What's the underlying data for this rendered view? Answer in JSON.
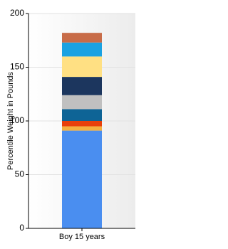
{
  "chart_data": {
    "type": "stacked_bar",
    "y_label": "Percentile Weight in Pounds",
    "categories": [
      "Boy 15 years"
    ],
    "series": [
      {
        "color": "#4a8ef0",
        "values": [
          91
        ]
      },
      {
        "color": "#f4b040",
        "values": [
          4
        ]
      },
      {
        "color": "#e8400c",
        "values": [
          5
        ]
      },
      {
        "color": "#0e6496",
        "values": [
          11
        ]
      },
      {
        "color": "#c0c0c0",
        "values": [
          13
        ]
      },
      {
        "color": "#1c365e",
        "values": [
          17
        ]
      },
      {
        "color": "#ffe083",
        "values": [
          19
        ]
      },
      {
        "color": "#1aa2e2",
        "values": [
          13
        ]
      },
      {
        "color": "#c86c48",
        "values": [
          9
        ]
      }
    ],
    "ylim": [
      0,
      200
    ],
    "yticks": [
      0,
      50,
      100,
      150,
      200
    ],
    "grid": true
  }
}
